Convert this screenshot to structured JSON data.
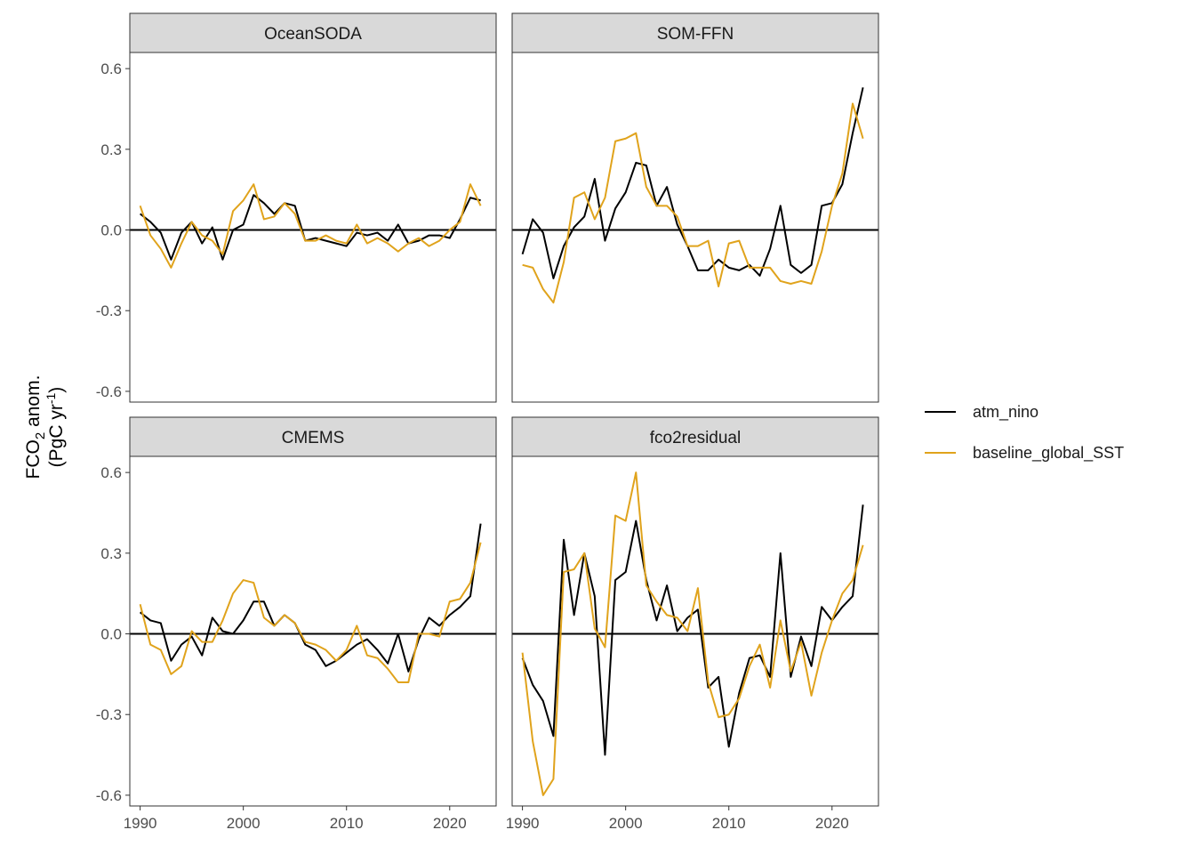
{
  "chart_data": {
    "type": "line",
    "layout": "faceted 2x2, shared axes",
    "ylabel": "FCO₂ anom. (PgC yr⁻¹)",
    "ylabel_lines": [
      "FCO",
      "2",
      " anom.",
      "(PgC yr",
      "-1",
      ")"
    ],
    "xlim": [
      1989,
      2024.5
    ],
    "ylim": [
      -0.64,
      0.66
    ],
    "x_ticks": [
      1990,
      2000,
      2010,
      2020
    ],
    "x_tick_labels": [
      "1990",
      "2000",
      "2010",
      "2020"
    ],
    "y_ticks": [
      -0.6,
      -0.3,
      0.0,
      0.3,
      0.6
    ],
    "y_tick_labels": [
      "-0.6",
      "-0.3",
      "0.0",
      "0.3",
      "0.6"
    ],
    "reference_line": 0,
    "grid": false,
    "legend_position": "right",
    "legend": [
      {
        "label": "atm_nino",
        "color": "#000000"
      },
      {
        "label": "baseline_global_SST",
        "color": "#E0A31C"
      }
    ],
    "x": [
      1990,
      1991,
      1992,
      1993,
      1994,
      1995,
      1996,
      1997,
      1998,
      1999,
      2000,
      2001,
      2002,
      2003,
      2004,
      2005,
      2006,
      2007,
      2008,
      2009,
      2010,
      2011,
      2012,
      2013,
      2014,
      2015,
      2016,
      2017,
      2018,
      2019,
      2020,
      2021,
      2022,
      2023
    ],
    "panels": [
      {
        "title": "OceanSODA",
        "series": [
          {
            "name": "atm_nino",
            "values": [
              0.06,
              0.03,
              -0.01,
              -0.11,
              -0.01,
              0.03,
              -0.05,
              0.01,
              -0.11,
              0.0,
              0.02,
              0.13,
              0.1,
              0.06,
              0.1,
              0.09,
              -0.04,
              -0.03,
              -0.04,
              -0.05,
              -0.06,
              -0.01,
              -0.02,
              -0.01,
              -0.04,
              0.02,
              -0.05,
              -0.04,
              -0.02,
              -0.02,
              -0.03,
              0.04,
              0.12,
              0.11
            ]
          },
          {
            "name": "baseline_global_SST",
            "values": [
              0.09,
              -0.02,
              -0.07,
              -0.14,
              -0.05,
              0.03,
              -0.02,
              -0.04,
              -0.09,
              0.07,
              0.11,
              0.17,
              0.04,
              0.05,
              0.1,
              0.06,
              -0.04,
              -0.04,
              -0.02,
              -0.04,
              -0.05,
              0.02,
              -0.05,
              -0.03,
              -0.05,
              -0.08,
              -0.05,
              -0.03,
              -0.06,
              -0.04,
              0.0,
              0.03,
              0.17,
              0.09
            ]
          }
        ]
      },
      {
        "title": "SOM-FFN",
        "series": [
          {
            "name": "atm_nino",
            "values": [
              -0.09,
              0.04,
              -0.01,
              -0.18,
              -0.06,
              0.01,
              0.05,
              0.19,
              -0.04,
              0.08,
              0.14,
              0.25,
              0.24,
              0.09,
              0.16,
              0.02,
              -0.06,
              -0.15,
              -0.15,
              -0.11,
              -0.14,
              -0.15,
              -0.13,
              -0.17,
              -0.07,
              0.09,
              -0.13,
              -0.16,
              -0.13,
              0.09,
              0.1,
              0.17,
              0.36,
              0.53
            ]
          },
          {
            "name": "baseline_global_SST",
            "values": [
              -0.13,
              -0.14,
              -0.22,
              -0.27,
              -0.12,
              0.12,
              0.14,
              0.04,
              0.12,
              0.33,
              0.34,
              0.36,
              0.16,
              0.09,
              0.09,
              0.05,
              -0.06,
              -0.06,
              -0.04,
              -0.21,
              -0.05,
              -0.04,
              -0.14,
              -0.14,
              -0.14,
              -0.19,
              -0.2,
              -0.19,
              -0.2,
              -0.08,
              0.09,
              0.21,
              0.47,
              0.34
            ]
          }
        ]
      },
      {
        "title": "CMEMS",
        "series": [
          {
            "name": "atm_nino",
            "values": [
              0.08,
              0.05,
              0.04,
              -0.1,
              -0.04,
              -0.01,
              -0.08,
              0.06,
              0.01,
              0.0,
              0.05,
              0.12,
              0.12,
              0.03,
              0.07,
              0.04,
              -0.04,
              -0.06,
              -0.12,
              -0.1,
              -0.07,
              -0.04,
              -0.02,
              -0.06,
              -0.11,
              0.0,
              -0.14,
              -0.02,
              0.06,
              0.03,
              0.07,
              0.1,
              0.14,
              0.41
            ]
          },
          {
            "name": "baseline_global_SST",
            "values": [
              0.11,
              -0.04,
              -0.06,
              -0.15,
              -0.12,
              0.01,
              -0.03,
              -0.03,
              0.05,
              0.15,
              0.2,
              0.19,
              0.06,
              0.03,
              0.07,
              0.04,
              -0.03,
              -0.04,
              -0.06,
              -0.1,
              -0.06,
              0.03,
              -0.08,
              -0.09,
              -0.13,
              -0.18,
              -0.18,
              0.0,
              0.0,
              -0.01,
              0.12,
              0.13,
              0.19,
              0.34
            ]
          }
        ]
      },
      {
        "title": "fco2residual",
        "series": [
          {
            "name": "atm_nino",
            "values": [
              -0.09,
              -0.19,
              -0.25,
              -0.38,
              0.35,
              0.07,
              0.3,
              0.14,
              -0.45,
              0.2,
              0.23,
              0.42,
              0.2,
              0.05,
              0.18,
              0.01,
              0.06,
              0.09,
              -0.2,
              -0.16,
              -0.42,
              -0.22,
              -0.09,
              -0.08,
              -0.16,
              0.3,
              -0.16,
              -0.01,
              -0.12,
              0.1,
              0.05,
              0.1,
              0.14,
              0.48
            ]
          },
          {
            "name": "baseline_global_SST",
            "values": [
              -0.07,
              -0.4,
              -0.6,
              -0.54,
              0.23,
              0.24,
              0.3,
              0.02,
              -0.05,
              0.44,
              0.42,
              0.6,
              0.18,
              0.12,
              0.07,
              0.06,
              0.01,
              0.17,
              -0.18,
              -0.31,
              -0.3,
              -0.24,
              -0.12,
              -0.04,
              -0.2,
              0.05,
              -0.14,
              -0.03,
              -0.23,
              -0.07,
              0.05,
              0.15,
              0.2,
              0.33
            ]
          }
        ]
      }
    ]
  }
}
